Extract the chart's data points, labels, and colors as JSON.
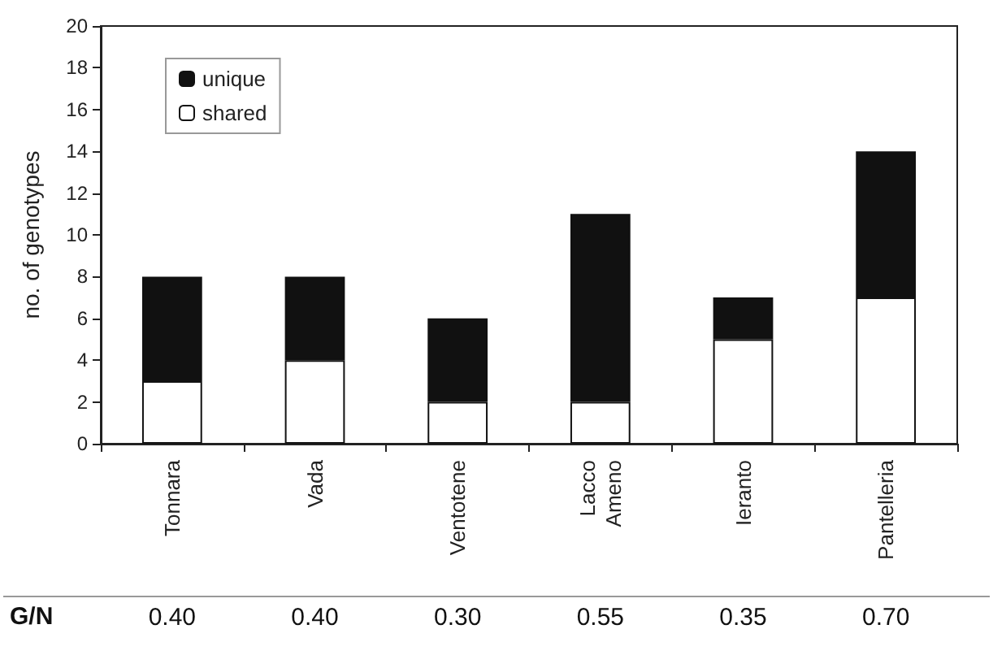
{
  "chart_data": {
    "type": "bar",
    "stacked": true,
    "ylabel": "no. of genotypes",
    "categories": [
      "Tonnara",
      "Vada",
      "Ventotene",
      "Lacco Ameno",
      "Ieranto",
      "Pantelleria"
    ],
    "series": [
      {
        "name": "shared",
        "color": "#ffffff",
        "values": [
          3,
          4,
          2,
          2,
          5,
          7
        ]
      },
      {
        "name": "unique",
        "color": "#111111",
        "values": [
          5,
          4,
          4,
          9,
          2,
          7
        ]
      }
    ],
    "ylim": [
      0,
      20
    ],
    "yticks": [
      0,
      2,
      4,
      6,
      8,
      10,
      12,
      14,
      16,
      18,
      20
    ],
    "grid": false,
    "legend": "top left",
    "annotations": [
      "G/N",
      "0.40",
      "0.40",
      "0.30",
      "0.55",
      "0.35",
      "0.70"
    ]
  }
}
